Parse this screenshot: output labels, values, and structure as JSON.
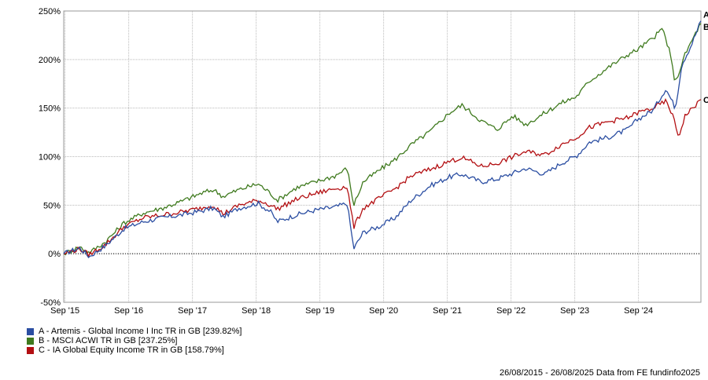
{
  "chart_data": {
    "type": "line",
    "x_tick_labels": [
      "Sep '15",
      "Sep '16",
      "Sep '17",
      "Sep '18",
      "Sep '19",
      "Sep '20",
      "Sep '21",
      "Sep '22",
      "Sep '23",
      "Sep '24"
    ],
    "y_tick_labels": [
      "250%",
      "200%",
      "150%",
      "100%",
      "50%",
      "0%",
      "-50%"
    ],
    "ylim": [
      -50,
      250
    ],
    "x_range_years": [
      2015.65,
      2025.65
    ],
    "grid": true,
    "legend_position": "bottom-left",
    "series": [
      {
        "name": "A - Artemis - Global Income I Inc TR in GB [239.82%]",
        "end_label": "A",
        "color": "#2b4ea2",
        "points": [
          [
            2015.65,
            0
          ],
          [
            2015.9,
            6
          ],
          [
            2016.05,
            -3
          ],
          [
            2016.3,
            8
          ],
          [
            2016.6,
            26
          ],
          [
            2016.9,
            33
          ],
          [
            2017.2,
            37
          ],
          [
            2017.5,
            40
          ],
          [
            2017.8,
            44
          ],
          [
            2018.0,
            47
          ],
          [
            2018.15,
            38
          ],
          [
            2018.4,
            47
          ],
          [
            2018.7,
            52
          ],
          [
            2018.9,
            43
          ],
          [
            2019.0,
            33
          ],
          [
            2019.3,
            40
          ],
          [
            2019.6,
            45
          ],
          [
            2019.9,
            48
          ],
          [
            2020.1,
            52
          ],
          [
            2020.2,
            5
          ],
          [
            2020.35,
            22
          ],
          [
            2020.6,
            28
          ],
          [
            2020.85,
            37
          ],
          [
            2021.1,
            55
          ],
          [
            2021.4,
            70
          ],
          [
            2021.7,
            79
          ],
          [
            2021.9,
            82
          ],
          [
            2022.2,
            74
          ],
          [
            2022.45,
            77
          ],
          [
            2022.7,
            83
          ],
          [
            2022.9,
            88
          ],
          [
            2023.2,
            82
          ],
          [
            2023.45,
            93
          ],
          [
            2023.7,
            101
          ],
          [
            2023.9,
            115
          ],
          [
            2024.2,
            120
          ],
          [
            2024.5,
            128
          ],
          [
            2024.65,
            138
          ],
          [
            2024.9,
            148
          ],
          [
            2025.1,
            170
          ],
          [
            2025.25,
            150
          ],
          [
            2025.35,
            195
          ],
          [
            2025.5,
            215
          ],
          [
            2025.65,
            239.82
          ]
        ]
      },
      {
        "name": "B - MSCI ACWI TR in GB [237.25%]",
        "end_label": "B",
        "color": "#3f7a1e",
        "points": [
          [
            2015.65,
            0
          ],
          [
            2015.9,
            7
          ],
          [
            2016.05,
            1
          ],
          [
            2016.3,
            12
          ],
          [
            2016.6,
            32
          ],
          [
            2016.9,
            42
          ],
          [
            2017.2,
            47
          ],
          [
            2017.5,
            54
          ],
          [
            2017.8,
            62
          ],
          [
            2018.0,
            66
          ],
          [
            2018.15,
            59
          ],
          [
            2018.4,
            66
          ],
          [
            2018.7,
            72
          ],
          [
            2018.9,
            62
          ],
          [
            2019.0,
            55
          ],
          [
            2019.3,
            68
          ],
          [
            2019.6,
            74
          ],
          [
            2019.9,
            80
          ],
          [
            2020.1,
            88
          ],
          [
            2020.2,
            50
          ],
          [
            2020.35,
            74
          ],
          [
            2020.6,
            86
          ],
          [
            2020.85,
            97
          ],
          [
            2021.1,
            112
          ],
          [
            2021.4,
            126
          ],
          [
            2021.7,
            145
          ],
          [
            2021.9,
            153
          ],
          [
            2022.2,
            137
          ],
          [
            2022.45,
            128
          ],
          [
            2022.7,
            142
          ],
          [
            2022.9,
            133
          ],
          [
            2023.2,
            145
          ],
          [
            2023.45,
            155
          ],
          [
            2023.7,
            162
          ],
          [
            2023.9,
            178
          ],
          [
            2024.2,
            192
          ],
          [
            2024.5,
            205
          ],
          [
            2024.65,
            210
          ],
          [
            2024.9,
            222
          ],
          [
            2025.05,
            232
          ],
          [
            2025.15,
            210
          ],
          [
            2025.25,
            176
          ],
          [
            2025.4,
            205
          ],
          [
            2025.55,
            225
          ],
          [
            2025.65,
            237.25
          ]
        ]
      },
      {
        "name": "C - IA Global Equity Income TR in GB [158.79%]",
        "end_label": "C",
        "color": "#b30f12",
        "points": [
          [
            2015.65,
            0
          ],
          [
            2015.9,
            5
          ],
          [
            2016.05,
            -1
          ],
          [
            2016.3,
            9
          ],
          [
            2016.6,
            28
          ],
          [
            2016.9,
            37
          ],
          [
            2017.2,
            40
          ],
          [
            2017.5,
            43
          ],
          [
            2017.8,
            47
          ],
          [
            2018.0,
            50
          ],
          [
            2018.15,
            41
          ],
          [
            2018.4,
            50
          ],
          [
            2018.7,
            55
          ],
          [
            2018.9,
            50
          ],
          [
            2019.0,
            46
          ],
          [
            2019.3,
            56
          ],
          [
            2019.6,
            62
          ],
          [
            2019.9,
            67
          ],
          [
            2020.1,
            69
          ],
          [
            2020.2,
            27
          ],
          [
            2020.35,
            47
          ],
          [
            2020.6,
            57
          ],
          [
            2020.85,
            67
          ],
          [
            2021.1,
            80
          ],
          [
            2021.4,
            87
          ],
          [
            2021.7,
            95
          ],
          [
            2021.9,
            99
          ],
          [
            2022.2,
            90
          ],
          [
            2022.45,
            93
          ],
          [
            2022.7,
            100
          ],
          [
            2022.9,
            105
          ],
          [
            2023.2,
            102
          ],
          [
            2023.45,
            112
          ],
          [
            2023.7,
            120
          ],
          [
            2023.9,
            130
          ],
          [
            2024.2,
            136
          ],
          [
            2024.5,
            140
          ],
          [
            2024.65,
            145
          ],
          [
            2024.9,
            150
          ],
          [
            2025.1,
            157
          ],
          [
            2025.2,
            144
          ],
          [
            2025.3,
            120
          ],
          [
            2025.4,
            142
          ],
          [
            2025.55,
            152
          ],
          [
            2025.65,
            158.79
          ]
        ]
      }
    ]
  },
  "footer": {
    "text": "26/08/2015 - 26/08/2025 Data from FE fundinfo2025"
  }
}
